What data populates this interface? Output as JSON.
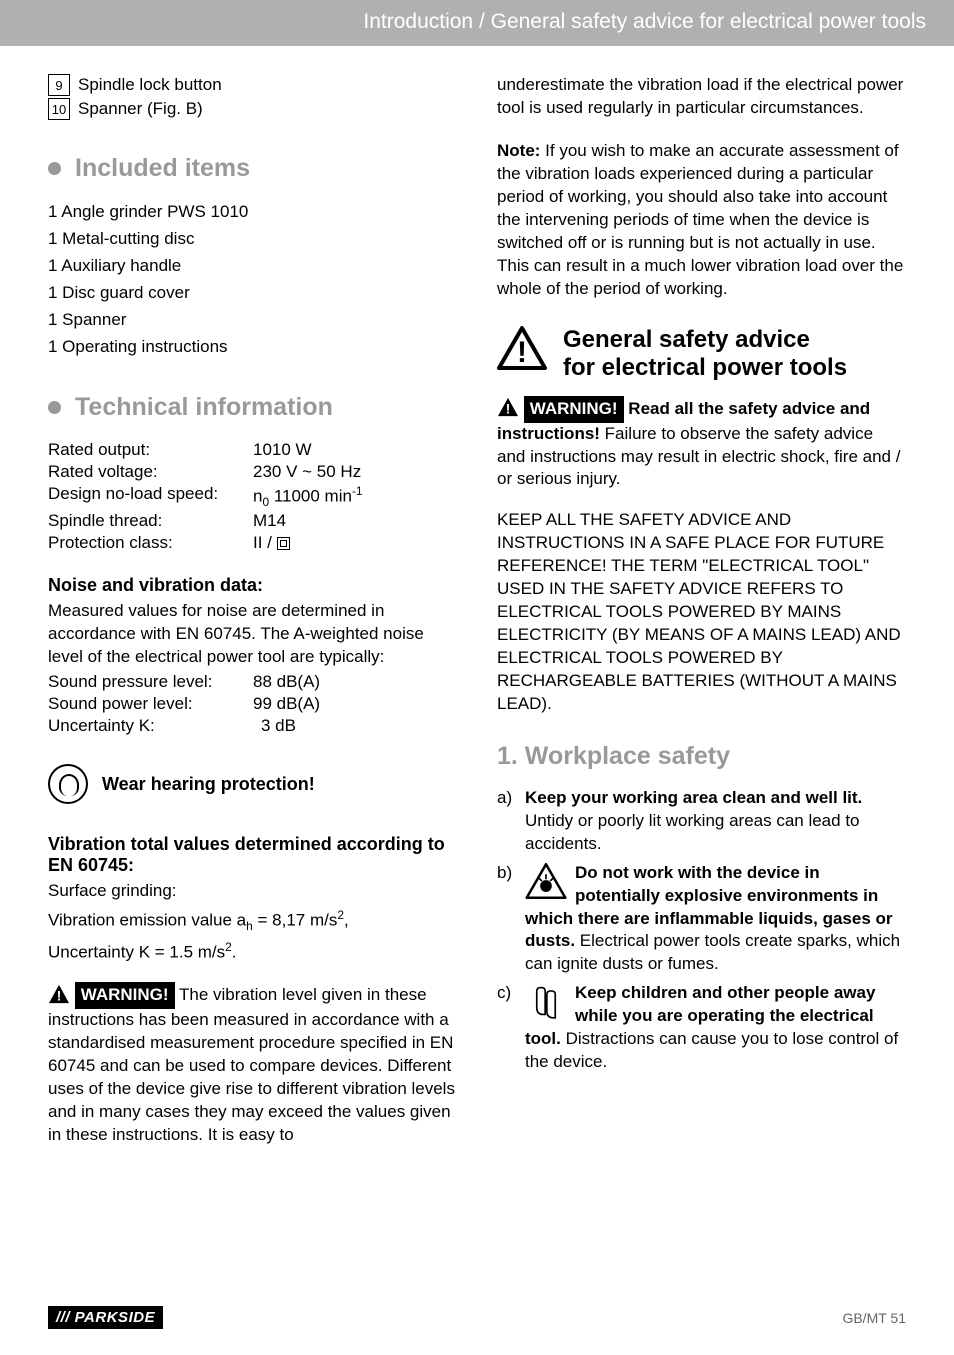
{
  "header": "Introduction / General safety advice for electrical power tools",
  "parts": [
    {
      "num": "9",
      "label": "Spindle lock button"
    },
    {
      "num": "10",
      "label": "Spanner (Fig. B)"
    }
  ],
  "sections": {
    "included_title": "Included items",
    "included_items": [
      "1 Angle grinder PWS 1010",
      "1 Metal-cutting disc",
      "1 Auxiliary handle",
      "1 Disc guard cover",
      "1 Spanner",
      "1 Operating instructions"
    ],
    "tech_title": "Technical information",
    "specs": [
      {
        "label": "Rated output:",
        "value": "1010 W"
      },
      {
        "label": "Rated voltage:",
        "value": "230 V ~ 50 Hz"
      },
      {
        "label": "Design no-load speed:",
        "value_html": "n<sub>0</sub> 11000 min<sup>-1</sup>"
      },
      {
        "label": "Spindle thread:",
        "value": "M14"
      },
      {
        "label": "Protection class:",
        "value_html": "II / <span class=\"doubleins\"></span>"
      }
    ],
    "noise_title": "Noise and vibration data:",
    "noise_text": "Measured values for noise are determined in accordance with EN 60745. The A-weighted noise level of the electrical power tool are typically:",
    "noise_rows": [
      {
        "label": "Sound pressure level:",
        "value": "88 dB(A)"
      },
      {
        "label": "Sound power level:",
        "value": "99 dB(A)"
      },
      {
        "label": "Uncertainty K:",
        "value": "3 dB"
      }
    ],
    "hearing": "Wear hearing protection!",
    "vib_title": "Vibration total values determined according to EN 60745:",
    "vib_lines_html": [
      "Surface grinding:",
      "Vibration emission value a<sub>h</sub> = 8,17 m/s<sup>2</sup>,",
      "Uncertainty K = 1.5 m/s<sup>2</sup>."
    ],
    "warn_label": "WARNING!",
    "warn1_text": " The vibration level given in these instructions has been measured in accordance with a standardised measurement procedure specified in EN 60745 and can be used to compare devices. Different uses of the device give rise to different vibration levels and in many cases they may exceed the values given in these instructions. It is easy to",
    "col2_top": "underestimate the vibration load if the electrical power tool is used regularly in particular circumstances.",
    "note_label": "Note:",
    "note_text": " If you wish to make an accurate assessment of the vibration loads experienced during a particular period of working, you should also take into account the intervening periods of time when the device is switched off or is running but is not actually in use. This can result in a much lower vibration load over the whole of the period of working.",
    "gsa_title_l1": "General safety advice",
    "gsa_title_l2": "for electrical power tools",
    "gsa_warn_lead": " Read all the safety advice and instructions!",
    "gsa_warn_tail": " Failure to observe the safety advice and instructions may result in electric shock, fire and / or serious injury.",
    "keep_text": "KEEP ALL THE SAFETY ADVICE AND INSTRUCTIONS IN A SAFE PLACE FOR FUTURE REFERENCE! THE TERM \"ELECTRICAL TOOL\" USED IN THE SAFETY ADVICE REFERS TO ELECTRICAL TOOLS POWERED BY MAINS ELECTRICITY (BY MEANS OF A MAINS LEAD) AND ELECTRICAL TOOLS POWERED BY RECHARGEABLE BATTERIES (WITHOUT A MAINS LEAD).",
    "workplace_title": "1.  Workplace safety",
    "wp_a_bold": "Keep your working area clean and well lit.",
    "wp_a_tail": " Untidy or poorly lit working areas can lead to accidents.",
    "wp_b_bold": "Do not work with the device in potentially explosive environments in which there are inflammable liquids, gases or dusts.",
    "wp_b_tail": " Electrical power tools create sparks, which can ignite dusts or fumes.",
    "wp_c_bold": "Keep children and other people away while you are operating the electrical tool.",
    "wp_c_tail": " Distractions can cause you to lose control of the device."
  },
  "footer": {
    "brand": "/// PARKSIDE",
    "page": "GB/MT   51"
  },
  "style": {
    "header_bg": "#b0b0b0",
    "section_title_color": "#999999",
    "body_fontsize": 17,
    "title_fontsize": 25
  }
}
